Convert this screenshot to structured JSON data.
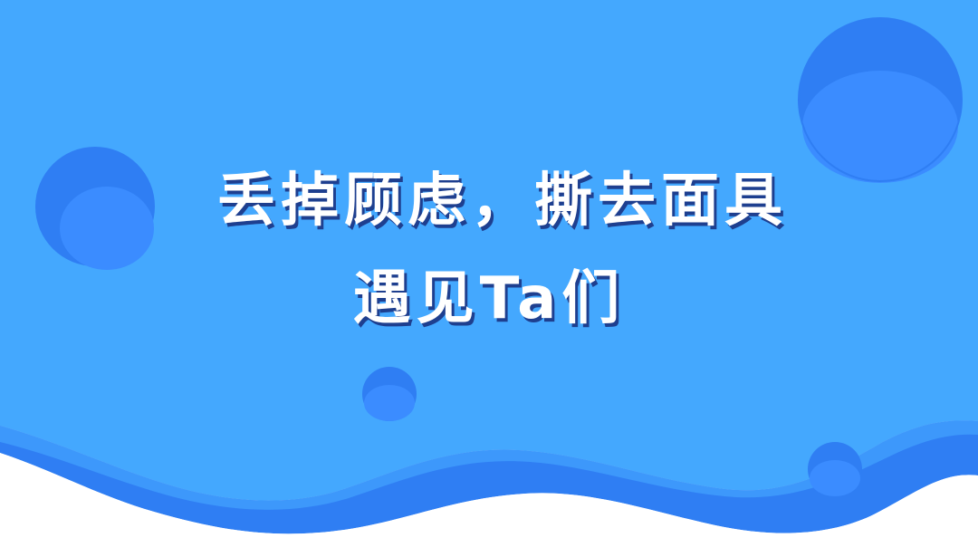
{
  "headline": {
    "line1": "丢掉顾虑，撕去面具",
    "line2": "遇见Ta们"
  },
  "colors": {
    "background_top": "#44a8fe",
    "wave_dark": "#2f7ef3",
    "wave_mid": "#3d98fb",
    "bubble_dark": "#2f7ef3",
    "bubble_light": "#3b8cff",
    "text": "#ffffff",
    "text_shadow": "#1e3f8f"
  }
}
